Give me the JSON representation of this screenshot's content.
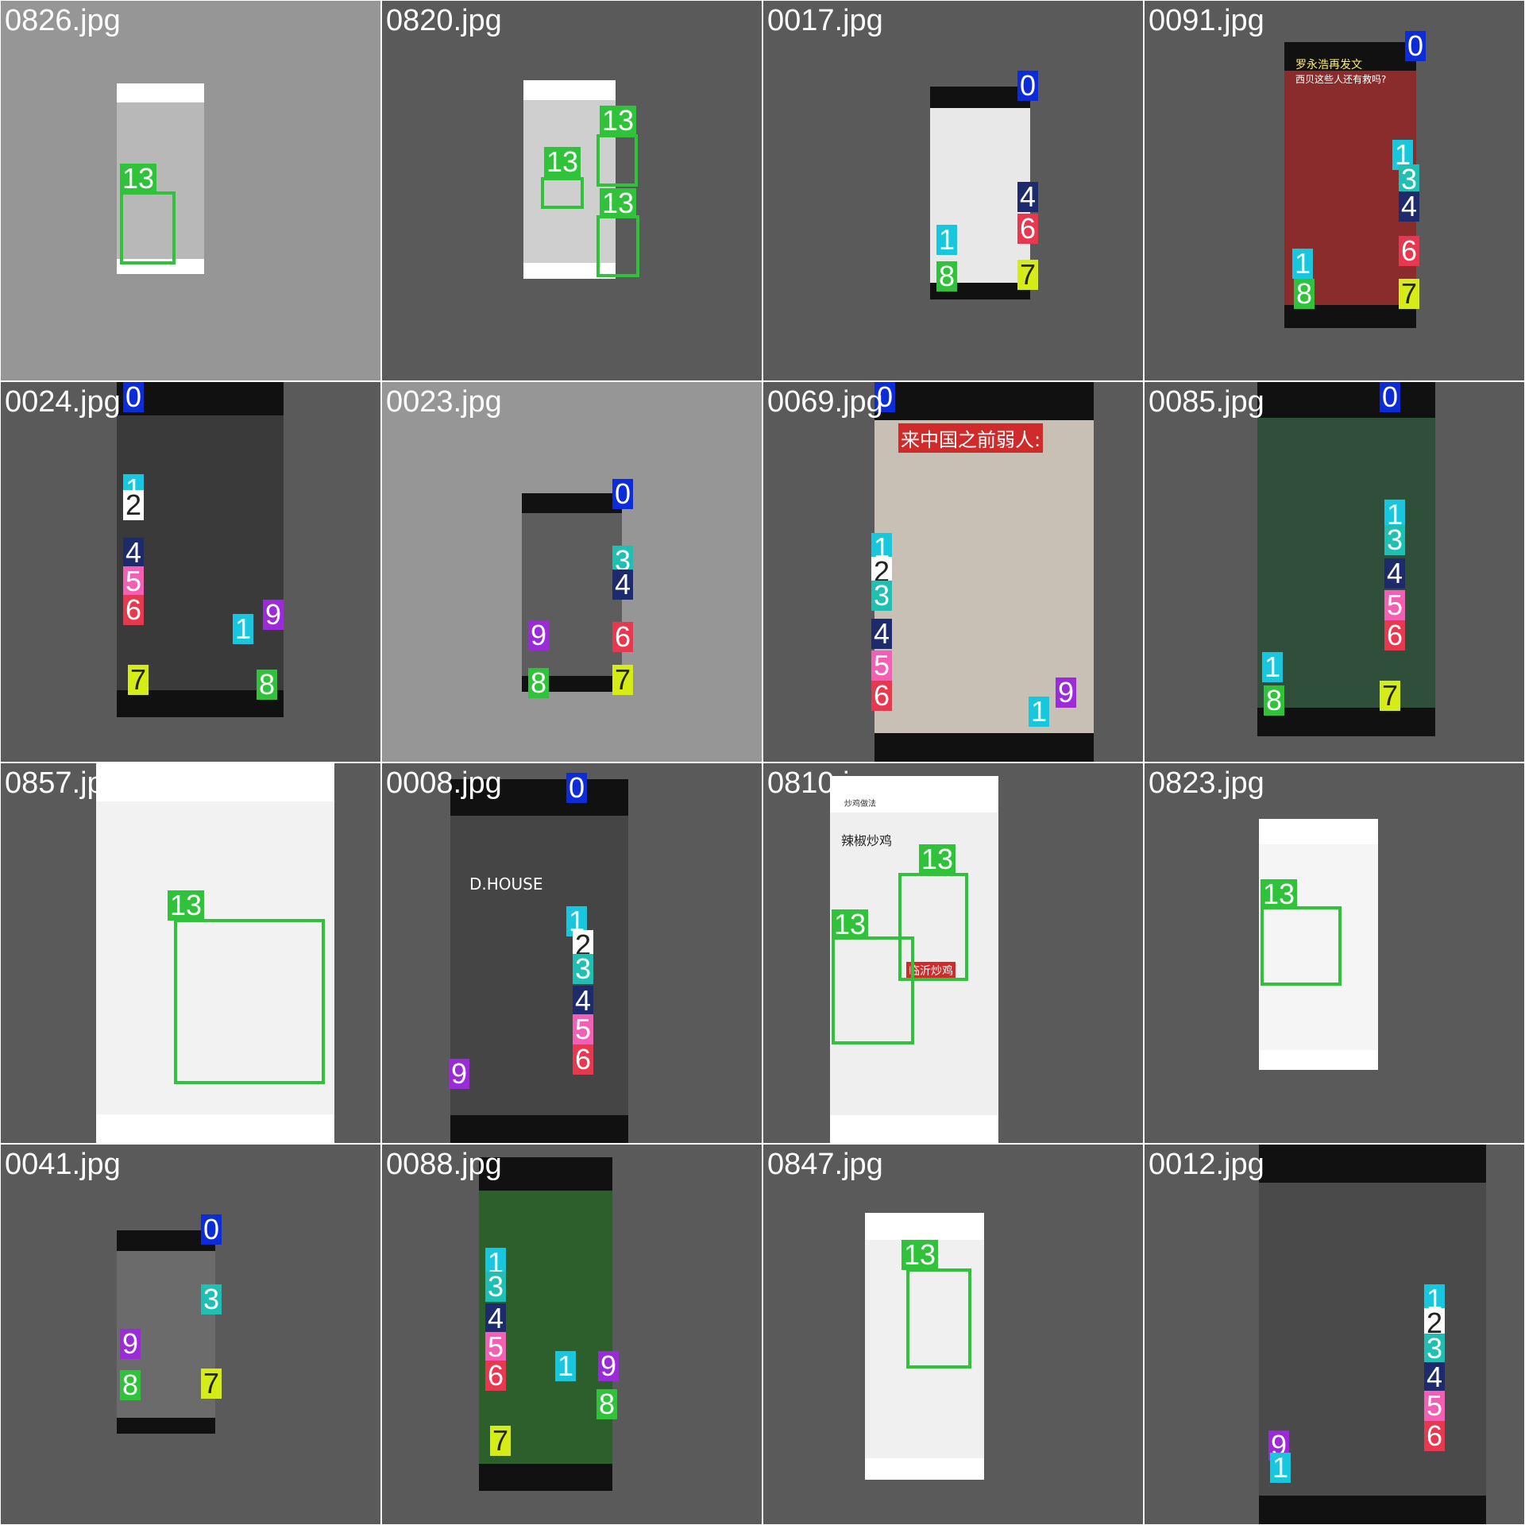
{
  "tiles": [
    {
      "file": "0826.jpg"
    },
    {
      "file": "0820.jpg"
    },
    {
      "file": "0017.jpg"
    },
    {
      "file": "0091.jpg"
    },
    {
      "file": "0024.jpg"
    },
    {
      "file": "0023.jpg"
    },
    {
      "file": "0069.jpg"
    },
    {
      "file": "0085.jpg"
    },
    {
      "file": "0857.jpg"
    },
    {
      "file": "0008.jpg"
    },
    {
      "file": "0810.jpg"
    },
    {
      "file": "0823.jpg"
    },
    {
      "file": "0041.jpg"
    },
    {
      "file": "0088.jpg"
    },
    {
      "file": "0847.jpg"
    },
    {
      "file": "0012.jpg"
    }
  ],
  "badge_colors": {
    "0": "#0c2bd9",
    "1": "#18c7dd",
    "2": "#ffffff",
    "3": "#1fbfb3",
    "4": "#1d2a6b",
    "5": "#f25fb3",
    "6": "#e8384f",
    "7": "#d6ec16",
    "8": "#30c23a",
    "9": "#9b2bd9",
    "13": "#30c23a"
  },
  "labels": {
    "l0": "0",
    "l1": "1",
    "l2": "2",
    "l3": "3",
    "l4": "4",
    "l5": "5",
    "l6": "6",
    "l7": "7",
    "l8": "8",
    "l9": "9",
    "l13": "13"
  },
  "screens": {
    "s0069_caption": "来中国之前弱人:",
    "s0008_gym": "D.HOUSE",
    "s0810_title": "炒鸡做法",
    "s0810_a": "辣椒炒鸡",
    "s0810_b": "临沂炒鸡",
    "s0091_title": "罗永浩再发文",
    "s0091_sub": "西贝这些人还有救吗?"
  }
}
